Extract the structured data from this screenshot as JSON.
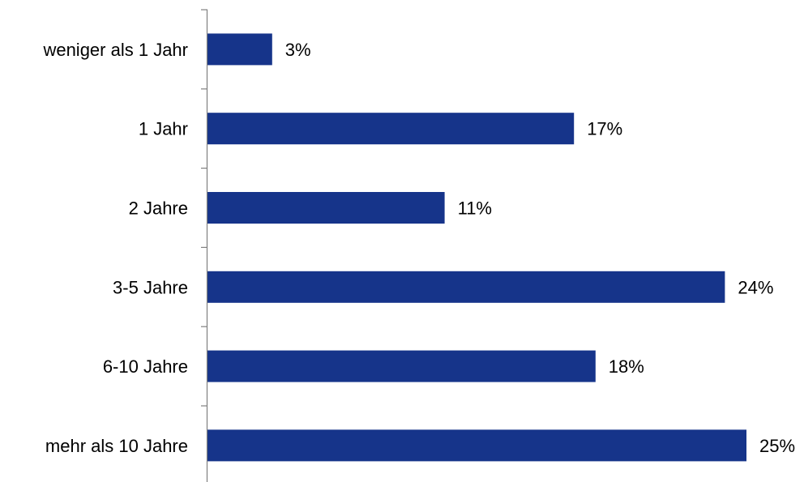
{
  "chart_data": {
    "type": "bar",
    "orientation": "horizontal",
    "categories": [
      "weniger als 1 Jahr",
      "1 Jahr",
      "2 Jahre",
      "3-5 Jahre",
      "6-10 Jahre",
      "mehr als 10 Jahre"
    ],
    "values": [
      3,
      17,
      11,
      24,
      18,
      25
    ],
    "value_labels": [
      "3%",
      "17%",
      "11%",
      "24%",
      "18%",
      "25%"
    ],
    "unit": "%",
    "xlim": [
      0,
      25
    ],
    "grid": false,
    "legend": "none",
    "bar_color": "#16348a",
    "axis_color": "#808080"
  }
}
